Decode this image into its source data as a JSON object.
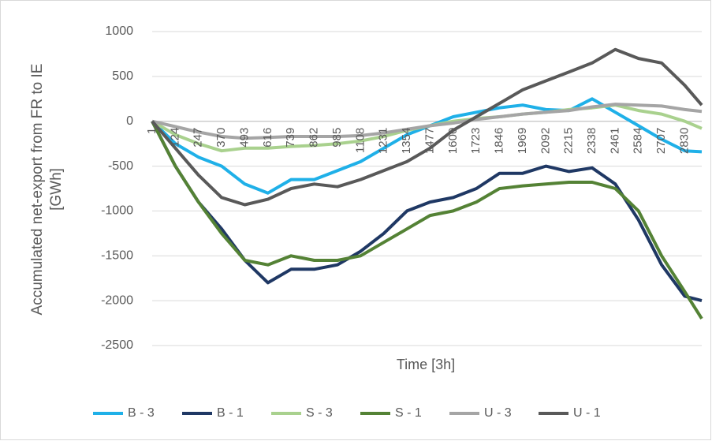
{
  "chart_data": {
    "type": "line",
    "x_label": "Time [3h]",
    "y_label": "Accumulated net-export from FR to IE [GWh]",
    "x": [
      1,
      124,
      247,
      370,
      493,
      616,
      739,
      862,
      985,
      1108,
      1231,
      1354,
      1477,
      1600,
      1723,
      1846,
      1969,
      2092,
      2215,
      2338,
      2461,
      2584,
      2707,
      2830,
      2920
    ],
    "xlim": [
      1,
      2920
    ],
    "xticks": [
      1,
      124,
      247,
      370,
      493,
      616,
      739,
      862,
      985,
      1108,
      1231,
      1354,
      1477,
      1600,
      1723,
      1846,
      1969,
      2092,
      2215,
      2338,
      2461,
      2584,
      2707,
      2830
    ],
    "ylim": [
      -2500,
      1000
    ],
    "yticks": [
      -2500,
      -2000,
      -1500,
      -1000,
      -500,
      0,
      500,
      1000
    ],
    "grid": true,
    "legend": "bottom",
    "series": [
      {
        "name": "B - 3",
        "color": "#1fb0e8",
        "values": [
          0,
          -250,
          -400,
          -500,
          -700,
          -800,
          -650,
          -650,
          -550,
          -450,
          -300,
          -150,
          -50,
          50,
          100,
          150,
          180,
          130,
          120,
          250,
          100,
          -50,
          -200,
          -330,
          -340
        ]
      },
      {
        "name": "B - 1",
        "color": "#1f3864",
        "values": [
          0,
          -500,
          -900,
          -1200,
          -1550,
          -1800,
          -1650,
          -1650,
          -1600,
          -1450,
          -1250,
          -1000,
          -900,
          -850,
          -750,
          -580,
          -580,
          -500,
          -560,
          -520,
          -700,
          -1100,
          -1600,
          -1950,
          -2000
        ]
      },
      {
        "name": "S - 3",
        "color": "#a9d18e",
        "values": [
          0,
          -150,
          -250,
          -330,
          -300,
          -300,
          -280,
          -270,
          -250,
          -220,
          -170,
          -100,
          -50,
          0,
          30,
          50,
          80,
          100,
          130,
          150,
          180,
          120,
          80,
          0,
          -80
        ]
      },
      {
        "name": "S - 1",
        "color": "#548235",
        "values": [
          0,
          -500,
          -900,
          -1250,
          -1550,
          -1600,
          -1500,
          -1550,
          -1550,
          -1500,
          -1350,
          -1200,
          -1050,
          -1000,
          -900,
          -750,
          -720,
          -700,
          -680,
          -680,
          -750,
          -1000,
          -1500,
          -1900,
          -2200
        ]
      },
      {
        "name": "U - 3",
        "color": "#a5a5a5",
        "values": [
          0,
          -60,
          -120,
          -170,
          -190,
          -180,
          -170,
          -170,
          -170,
          -160,
          -130,
          -90,
          -50,
          -20,
          20,
          50,
          80,
          100,
          120,
          160,
          190,
          180,
          170,
          130,
          110
        ]
      },
      {
        "name": "U - 1",
        "color": "#595959",
        "values": [
          0,
          -300,
          -600,
          -850,
          -930,
          -870,
          -750,
          -700,
          -730,
          -650,
          -550,
          -450,
          -300,
          -100,
          50,
          200,
          350,
          450,
          550,
          650,
          800,
          700,
          650,
          400,
          180
        ]
      }
    ]
  }
}
